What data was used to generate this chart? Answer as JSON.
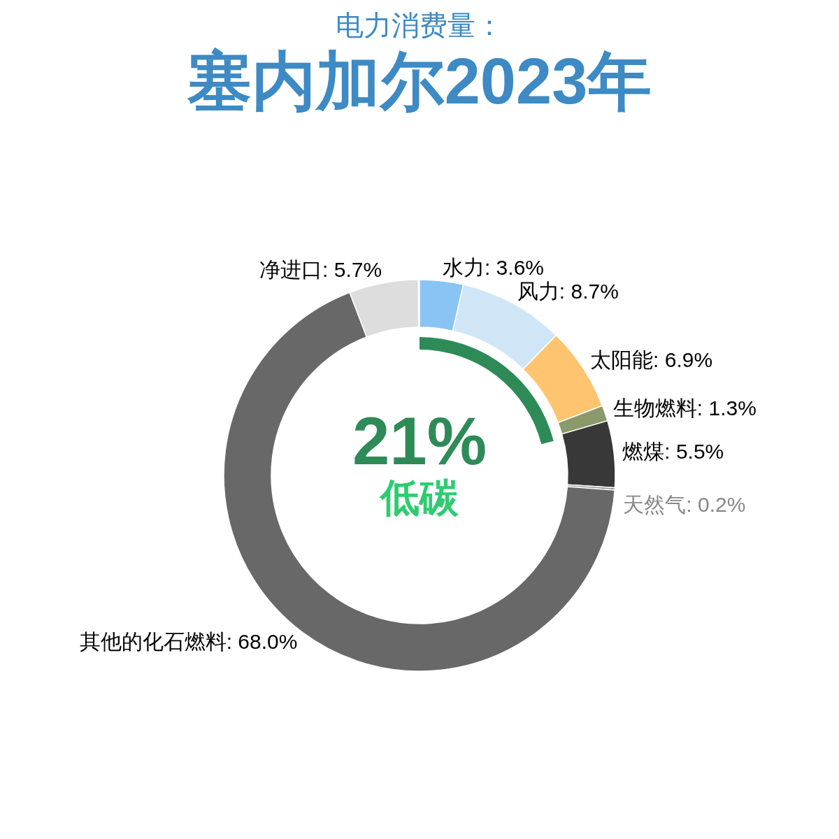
{
  "chart_data": [
    {
      "type": "donut",
      "title": "塞内加尔2023年",
      "subtitle": "电力消费量：",
      "categories": [
        "水力",
        "风力",
        "太阳能",
        "生物燃料",
        "燃煤",
        "天然气",
        "其他的化石燃料",
        "净进口"
      ],
      "values": [
        3.6,
        8.7,
        6.9,
        1.3,
        5.5,
        0.2,
        68.0,
        5.7
      ],
      "colors": [
        "#89c4f4",
        "#d0e6f7",
        "#ffc470",
        "#8a9a6a",
        "#383838",
        "#999999",
        "#686868",
        "#dddddd"
      ],
      "value_labels": [
        "3.6%",
        "8.7%",
        "6.9%",
        "1.3%",
        "5.5%",
        "0.2%",
        "68.0%",
        "5.7%"
      ]
    },
    {
      "type": "pie",
      "categories": [
        "低碳"
      ],
      "values": [
        21
      ],
      "colors": [
        "#2e8b57"
      ],
      "value_labels": [
        "21%"
      ]
    }
  ]
}
